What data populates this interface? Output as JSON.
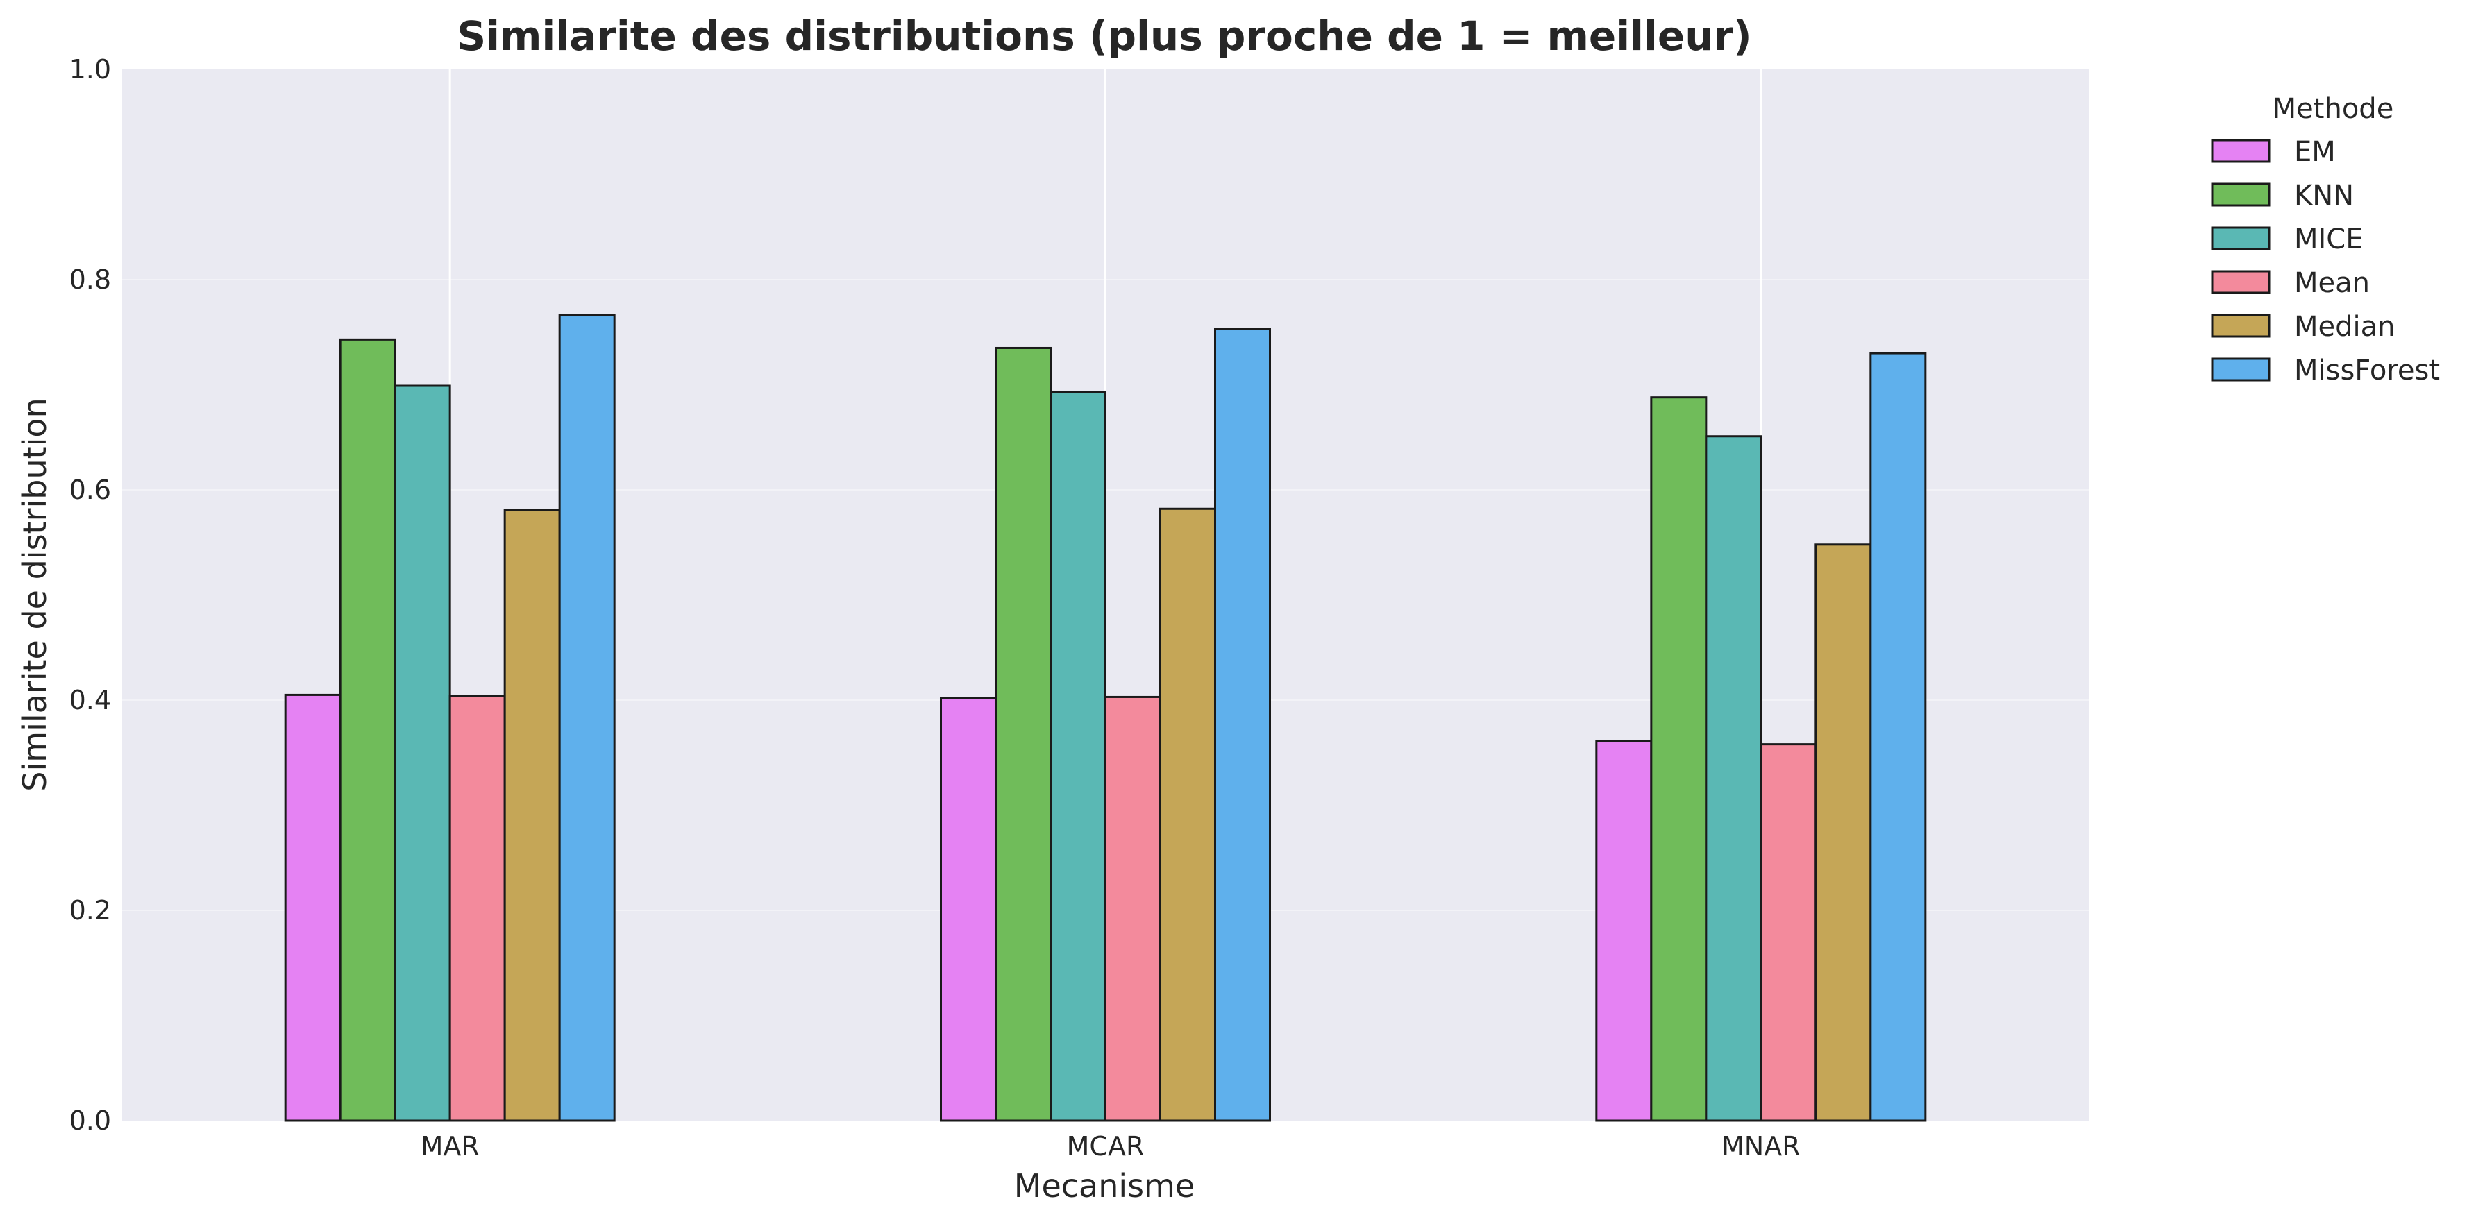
{
  "chart_data": {
    "type": "bar",
    "title": "Similarite des distributions (plus proche de 1 = meilleur)",
    "xlabel": "Mecanisme",
    "ylabel": "Similarite de distribution",
    "ylim": [
      0,
      1.0
    ],
    "yticks": [
      "0.0",
      "0.2",
      "0.4",
      "0.6",
      "0.8",
      "1.0"
    ],
    "categories": [
      "MAR",
      "MCAR",
      "MNAR"
    ],
    "legend_title": "Methode",
    "legend_position": "outside-right-top",
    "grid": true,
    "series": [
      {
        "name": "EM",
        "color": "#e582f3",
        "values": [
          0.405,
          0.402,
          0.361
        ]
      },
      {
        "name": "KNN",
        "color": "#70bc5a",
        "values": [
          0.743,
          0.735,
          0.688
        ]
      },
      {
        "name": "MICE",
        "color": "#5ab8b4",
        "values": [
          0.699,
          0.693,
          0.651
        ]
      },
      {
        "name": "Mean",
        "color": "#f38a9c",
        "values": [
          0.404,
          0.403,
          0.358
        ]
      },
      {
        "name": "Median",
        "color": "#c5a657",
        "values": [
          0.581,
          0.582,
          0.548
        ]
      },
      {
        "name": "MissForest",
        "color": "#5fb0ec",
        "values": [
          0.766,
          0.753,
          0.73
        ]
      }
    ]
  }
}
